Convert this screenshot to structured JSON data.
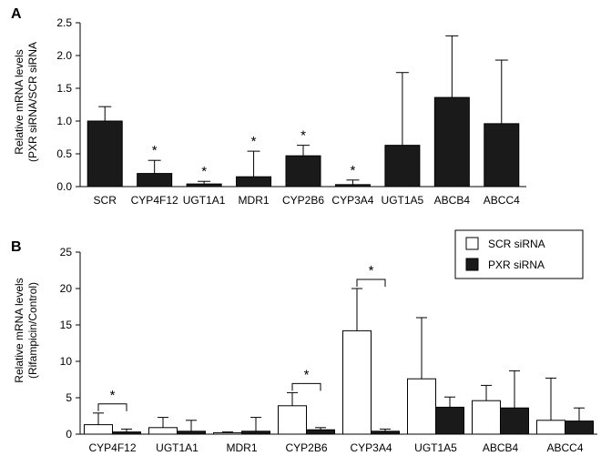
{
  "chart_data": [
    {
      "panel": "A",
      "type": "bar",
      "ylabel": [
        "Relative mRNA levels",
        "(PXR siRNA/SCR siRNA"
      ],
      "ylim": [
        0,
        2.5
      ],
      "yticks": [
        "0.0",
        "0.5",
        "1.0",
        "1.5",
        "2.0",
        "2.5"
      ],
      "categories": [
        "SCR",
        "CYP4F12",
        "UGT1A1",
        "MDR1",
        "CYP2B6",
        "CYP3A4",
        "UGT1A5",
        "ABCB4",
        "ABCC4"
      ],
      "values": [
        1.0,
        0.2,
        0.04,
        0.15,
        0.47,
        0.03,
        0.63,
        1.36,
        0.96
      ],
      "error_upper": [
        1.22,
        0.4,
        0.08,
        0.54,
        0.63,
        0.1,
        1.74,
        2.3,
        1.93
      ],
      "significance": [
        false,
        true,
        true,
        true,
        true,
        true,
        false,
        false,
        false
      ],
      "bar_color": "#1a1a1a",
      "star_symbol": "*"
    },
    {
      "panel": "B",
      "type": "bar",
      "ylabel": [
        "Relative mRNA levels",
        "(Rifampicin/Control)"
      ],
      "ylim": [
        0,
        25
      ],
      "yticks": [
        "0",
        "5",
        "10",
        "15",
        "20",
        "25"
      ],
      "categories": [
        "CYP4F12",
        "UGT1A1",
        "MDR1",
        "CYP2B6",
        "CYP3A4",
        "UGT1A5",
        "ABCB4",
        "ABCC4"
      ],
      "series": [
        {
          "name": "SCR siRNA",
          "color": "#ffffff",
          "values": [
            1.3,
            0.9,
            0.2,
            3.9,
            14.2,
            7.6,
            4.6,
            1.9
          ],
          "error_upper": [
            2.9,
            2.3,
            0.3,
            5.7,
            20.0,
            16.0,
            6.7,
            7.7
          ]
        },
        {
          "name": "PXR siRNA",
          "color": "#1a1a1a",
          "values": [
            0.3,
            0.4,
            0.4,
            0.6,
            0.4,
            3.7,
            3.6,
            1.8
          ],
          "error_upper": [
            0.7,
            1.9,
            2.3,
            0.9,
            0.7,
            5.1,
            8.7,
            3.6
          ]
        }
      ],
      "significance": [
        true,
        false,
        false,
        true,
        true,
        false,
        false,
        false
      ],
      "star_symbol": "*",
      "legend_position": "top-right"
    }
  ]
}
